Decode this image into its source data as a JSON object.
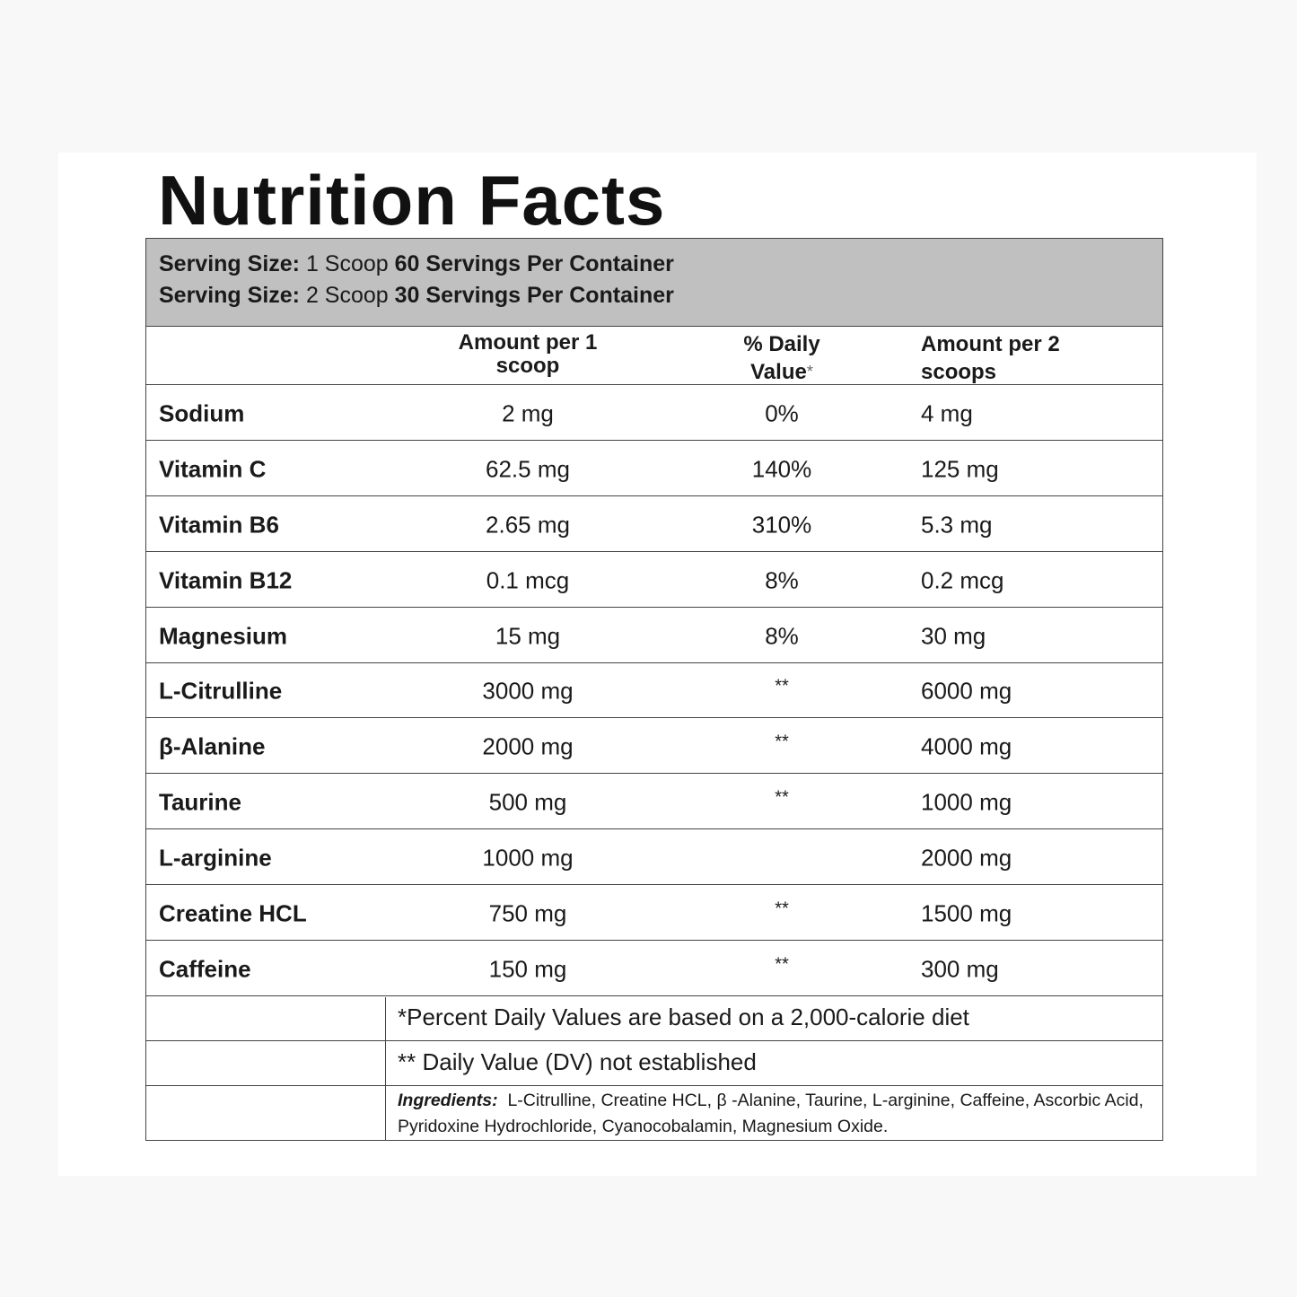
{
  "title": "Nutrition Facts",
  "serving": [
    {
      "label": "Serving Size:",
      "amount": "1 Scoop",
      "servings": "60 Servings Per Container"
    },
    {
      "label": "Serving Size:",
      "amount": "2 Scoop",
      "servings": "30 Servings Per Container"
    }
  ],
  "table": {
    "header": {
      "amount_1": "Amount per 1 scoop",
      "daily_value": "% Daily Value",
      "daily_value_mark": "*",
      "amount_2": "Amount per 2 scoops"
    },
    "rows": [
      {
        "name": "Sodium",
        "amount_1": "2 mg",
        "daily_value": "0%",
        "amount_2": "4 mg"
      },
      {
        "name": "Vitamin C",
        "amount_1": "62.5 mg",
        "daily_value": "140%",
        "amount_2": "125 mg"
      },
      {
        "name": "Vitamin B6",
        "amount_1": "2.65 mg",
        "daily_value": "310%",
        "amount_2": "5.3 mg"
      },
      {
        "name": "Vitamin B12",
        "amount_1": "0.1 mcg",
        "daily_value": "8%",
        "amount_2": "0.2 mcg"
      },
      {
        "name": "Magnesium",
        "amount_1": "15 mg",
        "daily_value": "8%",
        "amount_2": "30 mg"
      },
      {
        "name": "L-Citrulline",
        "amount_1": "3000 mg",
        "daily_value": "**",
        "amount_2": "6000 mg"
      },
      {
        "name": "β-Alanine",
        "amount_1": "2000 mg",
        "daily_value": "**",
        "amount_2": "4000 mg"
      },
      {
        "name": "Taurine",
        "amount_1": "500 mg",
        "daily_value": "**",
        "amount_2": "1000 mg"
      },
      {
        "name": "L-arginine",
        "amount_1": "1000 mg",
        "amount_2": "2000 mg"
      },
      {
        "name": "Creatine HCL",
        "amount_1": "750 mg",
        "daily_value": "**",
        "amount_2": "1500 mg"
      },
      {
        "name": "Caffeine",
        "amount_1": "150 mg",
        "daily_value": "**",
        "amount_2": "300 mg"
      }
    ],
    "footnotes": [
      "*Percent Daily Values are based on a 2,000-calorie diet",
      "** Daily Value (DV) not established"
    ],
    "ingredients": {
      "label": "Ingredients:",
      "text": "L-Citrulline, Creatine HCL, β -Alanine, Taurine, L-arginine, Caffeine, Ascorbic Acid, Pyridoxine Hydrochloride, Cyanocobalamin, Magnesium Oxide."
    }
  }
}
